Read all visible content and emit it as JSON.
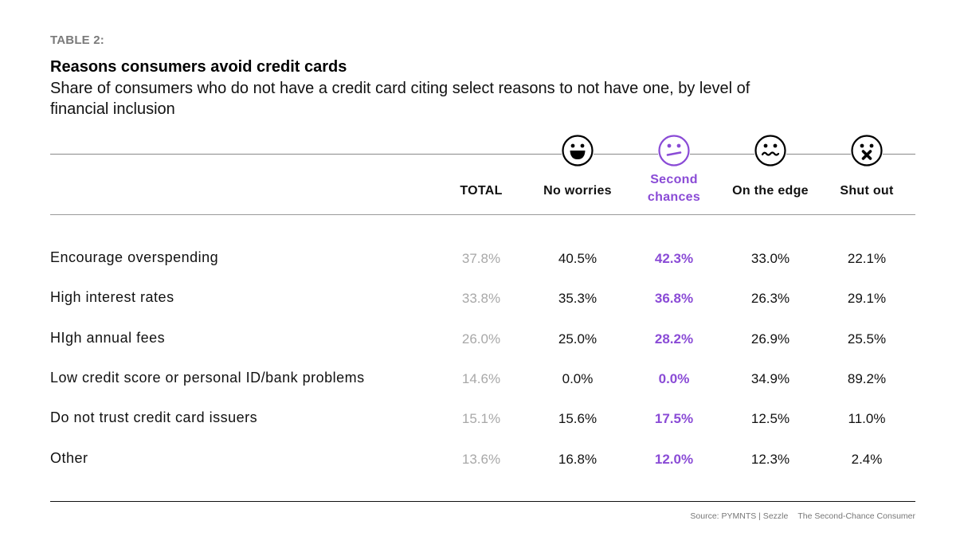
{
  "header": {
    "tag": "TABLE 2:",
    "title": "Reasons consumers avoid credit cards",
    "subtitle": "Share of consumers who do not have a credit card citing select reasons to not have one, by level of financial inclusion"
  },
  "colors": {
    "accent": "#8a4bd6",
    "total_text": "#a8a8a8",
    "text": "#111111"
  },
  "chart_data": {
    "type": "table",
    "title": "Reasons consumers avoid credit cards",
    "subtitle": "Share of consumers who do not have a credit card citing select reasons to not have one, by level of financial inclusion",
    "columns": [
      {
        "label": "TOTAL",
        "icon": null
      },
      {
        "label": "No worries",
        "icon": "grinning-face-icon"
      },
      {
        "label": "Second chances",
        "icon": "neutral-face-icon",
        "highlight": true
      },
      {
        "label": "On the edge",
        "icon": "worried-face-icon"
      },
      {
        "label": "Shut out",
        "icon": "x-mouth-face-icon"
      }
    ],
    "rows": [
      {
        "label": "Encourage overspending",
        "values": [
          "37.8%",
          "40.5%",
          "42.3%",
          "33.0%",
          "22.1%"
        ]
      },
      {
        "label": "High interest rates",
        "values": [
          "33.8%",
          "35.3%",
          "36.8%",
          "26.3%",
          "29.1%"
        ]
      },
      {
        "label": "HIgh annual fees",
        "values": [
          "26.0%",
          "25.0%",
          "28.2%",
          "26.9%",
          "25.5%"
        ]
      },
      {
        "label": "Low credit score or personal ID/bank problems",
        "values": [
          "14.6%",
          "0.0%",
          "0.0%",
          "34.9%",
          "89.2%"
        ]
      },
      {
        "label": "Do not trust credit card issuers",
        "values": [
          "15.1%",
          "15.6%",
          "17.5%",
          "12.5%",
          "11.0%"
        ]
      },
      {
        "label": "Other",
        "values": [
          "13.6%",
          "16.8%",
          "12.0%",
          "12.3%",
          "2.4%"
        ]
      }
    ]
  },
  "footer": {
    "source": "Source: PYMNTS | Sezzle",
    "report": "The Second-Chance Consumer"
  }
}
